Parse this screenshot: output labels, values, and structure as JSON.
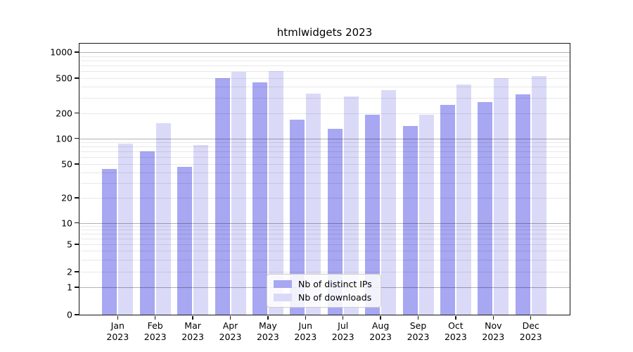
{
  "chart_data": {
    "type": "bar",
    "title": "htmlwidgets 2023",
    "categories": [
      "Jan",
      "Feb",
      "Mar",
      "Apr",
      "May",
      "Jun",
      "Jul",
      "Aug",
      "Sep",
      "Oct",
      "Nov",
      "Dec"
    ],
    "year_label": "2023",
    "series": [
      {
        "name": "Nb of distinct IPs",
        "color": "#a7a7f2",
        "values": [
          44,
          70,
          46,
          500,
          450,
          168,
          129,
          190,
          140,
          250,
          268,
          327
        ]
      },
      {
        "name": "Nb of downloads",
        "color": "#dadaf8",
        "values": [
          87,
          152,
          84,
          590,
          600,
          335,
          310,
          364,
          190,
          420,
          500,
          530
        ]
      }
    ],
    "y_axis": {
      "scale": "symlog",
      "tick_labels": [
        0,
        1,
        2,
        5,
        10,
        20,
        50,
        100,
        200,
        500,
        1000
      ],
      "ylim": [
        0,
        1250
      ]
    },
    "grid": "on",
    "legend": {
      "position": "lower-center",
      "entries": [
        "Nb of distinct IPs",
        "Nb of downloads"
      ]
    }
  },
  "colors": {
    "bar_distinct_ips": "#a7a7f2",
    "bar_downloads": "#dadaf8",
    "axis": "#151515",
    "text": "#000000",
    "legend_border": "#cccccc",
    "background": "#ffffff"
  }
}
